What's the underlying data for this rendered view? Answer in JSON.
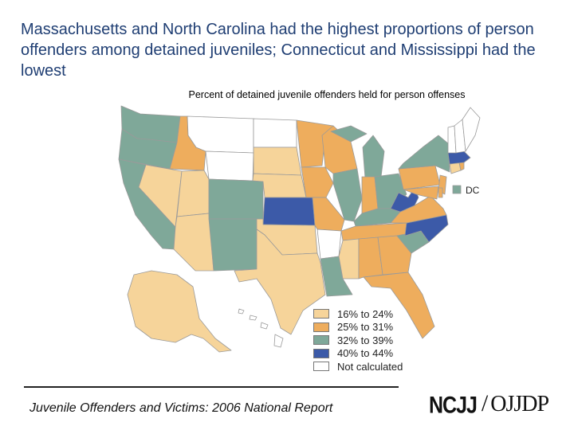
{
  "title": "Massachusetts and North Carolina had the highest proportions of person offenders among detained juveniles; Connecticut and Mississippi had the lowest",
  "subtitle": "Percent of detained juvenile offenders held for person offenses",
  "colors": {
    "c1": "#f6d49a",
    "c2": "#eead5d",
    "c3": "#7fa899",
    "c4": "#3c5aa8",
    "c0": "#ffffff",
    "border": "#9a9a9a"
  },
  "legend": [
    {
      "label": "16% to 24%",
      "cls": "c1"
    },
    {
      "label": "25% to 31%",
      "cls": "c2"
    },
    {
      "label": "32% to 39%",
      "cls": "c3"
    },
    {
      "label": "40% to 44%",
      "cls": "c4"
    },
    {
      "label": "Not calculated",
      "cls": "c0"
    }
  ],
  "dc_label": "DC",
  "footer": "Juvenile Offenders and Victims: 2006 National Report",
  "logos": {
    "left": "NCJJ",
    "separator": "/",
    "right": "OJJDP"
  },
  "states": [
    {
      "id": "WA",
      "cls": "c3"
    },
    {
      "id": "OR",
      "cls": "c3"
    },
    {
      "id": "CA",
      "cls": "c3"
    },
    {
      "id": "ID",
      "cls": "c2"
    },
    {
      "id": "NV",
      "cls": "c1"
    },
    {
      "id": "MT",
      "cls": "c0"
    },
    {
      "id": "WY",
      "cls": "c0"
    },
    {
      "id": "UT",
      "cls": "c1"
    },
    {
      "id": "AZ",
      "cls": "c1"
    },
    {
      "id": "CO",
      "cls": "c3"
    },
    {
      "id": "NM",
      "cls": "c3"
    },
    {
      "id": "ND",
      "cls": "c0"
    },
    {
      "id": "SD",
      "cls": "c1"
    },
    {
      "id": "NE",
      "cls": "c1"
    },
    {
      "id": "KS",
      "cls": "c4"
    },
    {
      "id": "OK",
      "cls": "c1"
    },
    {
      "id": "TX",
      "cls": "c1"
    },
    {
      "id": "MN",
      "cls": "c2"
    },
    {
      "id": "IA",
      "cls": "c2"
    },
    {
      "id": "MO",
      "cls": "c2"
    },
    {
      "id": "AR",
      "cls": "c0"
    },
    {
      "id": "LA",
      "cls": "c3"
    },
    {
      "id": "WI",
      "cls": "c2"
    },
    {
      "id": "IL",
      "cls": "c3"
    },
    {
      "id": "MI",
      "cls": "c3"
    },
    {
      "id": "IN",
      "cls": "c2"
    },
    {
      "id": "OH",
      "cls": "c3"
    },
    {
      "id": "KY",
      "cls": "c3"
    },
    {
      "id": "TN",
      "cls": "c2"
    },
    {
      "id": "MS",
      "cls": "c1"
    },
    {
      "id": "AL",
      "cls": "c2"
    },
    {
      "id": "GA",
      "cls": "c2"
    },
    {
      "id": "FL",
      "cls": "c2"
    },
    {
      "id": "SC",
      "cls": "c3"
    },
    {
      "id": "NC",
      "cls": "c4"
    },
    {
      "id": "VA",
      "cls": "c2"
    },
    {
      "id": "WV",
      "cls": "c4"
    },
    {
      "id": "PA",
      "cls": "c2"
    },
    {
      "id": "NY",
      "cls": "c3"
    },
    {
      "id": "NJ",
      "cls": "c2"
    },
    {
      "id": "MD",
      "cls": "c2"
    },
    {
      "id": "DE",
      "cls": "c2"
    },
    {
      "id": "CT",
      "cls": "c1"
    },
    {
      "id": "RI",
      "cls": "c2"
    },
    {
      "id": "MA",
      "cls": "c4"
    },
    {
      "id": "VT",
      "cls": "c0"
    },
    {
      "id": "NH",
      "cls": "c0"
    },
    {
      "id": "ME",
      "cls": "c0"
    },
    {
      "id": "AK",
      "cls": "c1"
    },
    {
      "id": "HI",
      "cls": "c0"
    },
    {
      "id": "DC",
      "cls": "c3"
    }
  ]
}
